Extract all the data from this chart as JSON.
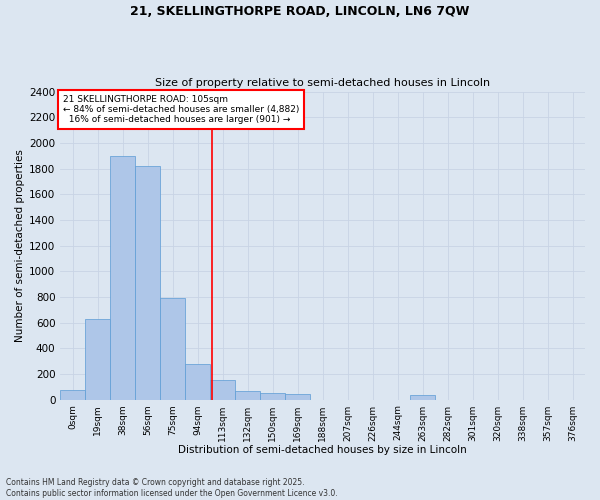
{
  "title_line1": "21, SKELLINGTHORPE ROAD, LINCOLN, LN6 7QW",
  "title_line2": "Size of property relative to semi-detached houses in Lincoln",
  "xlabel": "Distribution of semi-detached houses by size in Lincoln",
  "ylabel": "Number of semi-detached properties",
  "bar_labels": [
    "0sqm",
    "19sqm",
    "38sqm",
    "56sqm",
    "75sqm",
    "94sqm",
    "113sqm",
    "132sqm",
    "150sqm",
    "169sqm",
    "188sqm",
    "207sqm",
    "226sqm",
    "244sqm",
    "263sqm",
    "282sqm",
    "301sqm",
    "320sqm",
    "338sqm",
    "357sqm",
    "376sqm"
  ],
  "bar_values": [
    75,
    630,
    1900,
    1820,
    790,
    280,
    155,
    70,
    50,
    45,
    0,
    0,
    0,
    0,
    35,
    0,
    0,
    0,
    0,
    0,
    0
  ],
  "bar_color": "#aec6e8",
  "bar_edge_color": "#5b9bd5",
  "grid_color": "#c8d4e5",
  "background_color": "#dce6f1",
  "ylim": [
    0,
    2400
  ],
  "yticks": [
    0,
    200,
    400,
    600,
    800,
    1000,
    1200,
    1400,
    1600,
    1800,
    2000,
    2200,
    2400
  ],
  "property_label": "21 SKELLINGTHORPE ROAD: 105sqm",
  "pct_smaller": 84,
  "n_smaller": 4882,
  "pct_larger": 16,
  "n_larger": 901,
  "footnote_line1": "Contains HM Land Registry data © Crown copyright and database right 2025.",
  "footnote_line2": "Contains public sector information licensed under the Open Government Licence v3.0."
}
